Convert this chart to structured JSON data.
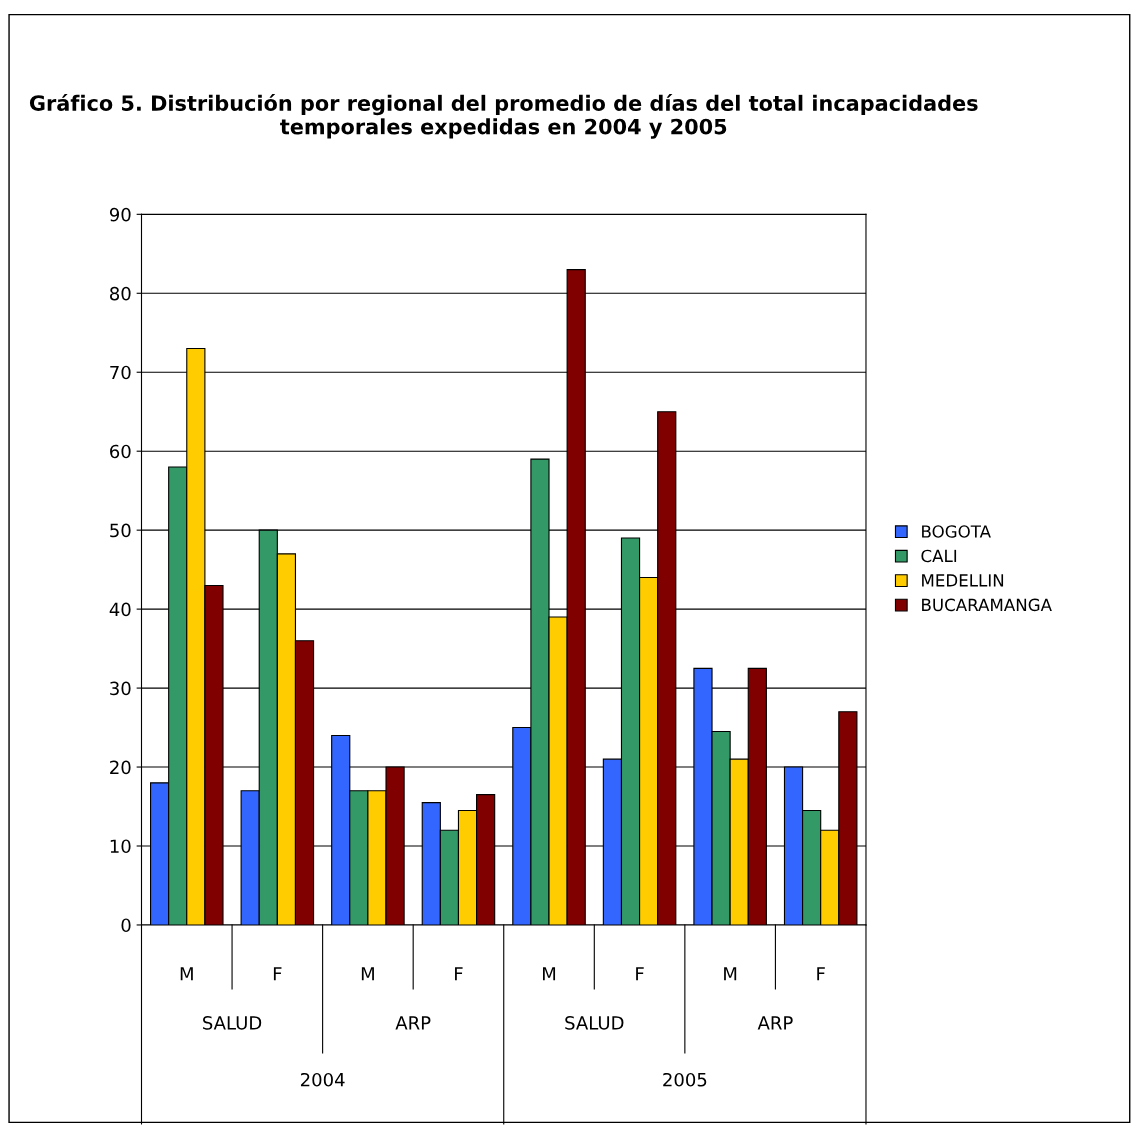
{
  "chart_data": {
    "type": "bar",
    "title": "Gráfico 5. Distribución por regional del promedio de días del total incapacidades temporales expedidas en 2004 y 2005",
    "categories": [
      "M",
      "F",
      "M",
      "F",
      "M",
      "F",
      "M",
      "F"
    ],
    "series": [
      {
        "name": "BOGOTA",
        "color": "#3366ff",
        "values": [
          18,
          17,
          24,
          15.5,
          25,
          21,
          32.5,
          20
        ]
      },
      {
        "name": "CALI",
        "color": "#339966",
        "values": [
          58,
          50,
          17,
          12,
          59,
          49,
          24.5,
          14.5
        ]
      },
      {
        "name": "MEDELLIN",
        "color": "#ffcc00",
        "values": [
          73,
          47,
          17,
          14.5,
          39,
          44,
          21,
          12
        ]
      },
      {
        "name": "BUCARAMANGA",
        "color": "#800000",
        "values": [
          43,
          36,
          20,
          16.5,
          83,
          65,
          32.5,
          27
        ]
      }
    ],
    "annotations": [
      "SALUD",
      "ARP",
      "SALUD",
      "ARP",
      "2004",
      "2005"
    ],
    "ylim": [
      0,
      90
    ],
    "yticks": [
      0,
      10,
      20,
      30,
      40,
      50,
      60,
      70,
      80,
      90
    ],
    "grid": "y",
    "legend": "right"
  }
}
